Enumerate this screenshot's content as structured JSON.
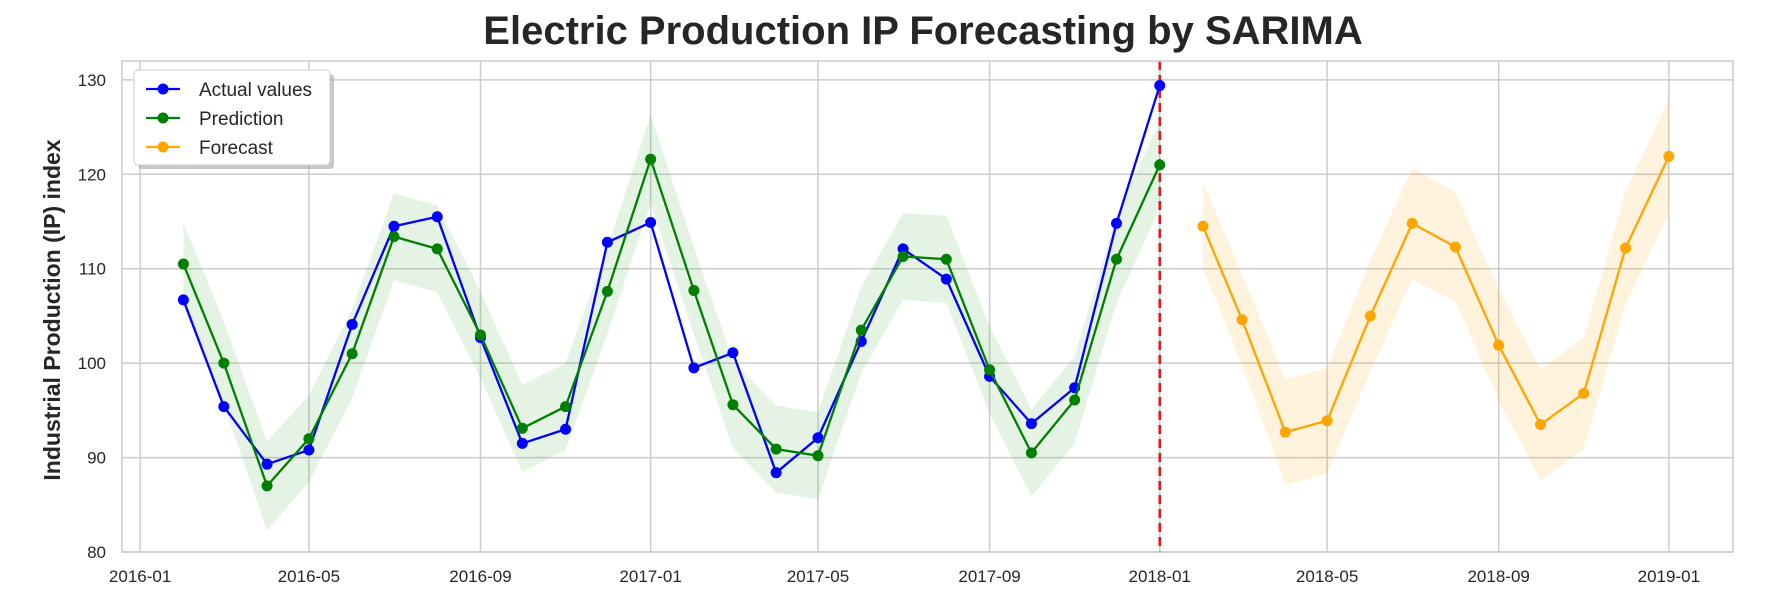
{
  "chart_data": {
    "type": "line",
    "title": "Electric Production IP Forecasting by SARIMA",
    "xlabel": "",
    "ylabel": "Industrial Production (IP) index",
    "xlim": [
      "2015-12-19",
      "2019-02-16"
    ],
    "ylim": [
      80,
      132
    ],
    "x_ticks": [
      "2016-01",
      "2016-05",
      "2016-09",
      "2017-01",
      "2017-05",
      "2017-09",
      "2018-01",
      "2018-05",
      "2018-09",
      "2019-01"
    ],
    "y_ticks": [
      80,
      90,
      100,
      110,
      120,
      130
    ],
    "grid": true,
    "legend_position": "top-left",
    "forecast_start_line": {
      "x": "2018-01-01",
      "color": "#e8121b",
      "style": "dashed"
    },
    "series": [
      {
        "name": "Actual values",
        "color": "#0000ff",
        "x": [
          "2016-02-01",
          "2016-03-01",
          "2016-04-01",
          "2016-05-01",
          "2016-06-01",
          "2016-07-01",
          "2016-08-01",
          "2016-09-01",
          "2016-10-01",
          "2016-11-01",
          "2016-12-01",
          "2017-01-01",
          "2017-02-01",
          "2017-03-01",
          "2017-04-01",
          "2017-05-01",
          "2017-06-01",
          "2017-07-01",
          "2017-08-01",
          "2017-09-01",
          "2017-10-01",
          "2017-11-01",
          "2017-12-01",
          "2018-01-01"
        ],
        "values": [
          106.7,
          95.4,
          89.3,
          90.8,
          104.1,
          114.5,
          115.5,
          102.7,
          91.5,
          93.0,
          112.8,
          114.9,
          99.5,
          101.1,
          88.4,
          92.1,
          102.3,
          112.1,
          108.9,
          98.6,
          93.6,
          97.4,
          114.8,
          129.4
        ]
      },
      {
        "name": "Prediction",
        "color": "#008000",
        "x": [
          "2016-02-01",
          "2016-03-01",
          "2016-04-01",
          "2016-05-01",
          "2016-06-01",
          "2016-07-01",
          "2016-08-01",
          "2016-09-01",
          "2016-10-01",
          "2016-11-01",
          "2016-12-01",
          "2017-01-01",
          "2017-02-01",
          "2017-03-01",
          "2017-04-01",
          "2017-05-01",
          "2017-06-01",
          "2017-07-01",
          "2017-08-01",
          "2017-09-01",
          "2017-10-01",
          "2017-11-01",
          "2017-12-01",
          "2018-01-01"
        ],
        "values": [
          110.5,
          100.0,
          87.0,
          92.0,
          101.0,
          113.4,
          112.1,
          103.0,
          93.1,
          95.4,
          107.6,
          121.6,
          107.7,
          95.6,
          90.9,
          90.2,
          103.5,
          111.3,
          111.0,
          99.3,
          90.5,
          96.1,
          111.0,
          121.0
        ],
        "ci_lower": [
          106.1,
          95.6,
          82.3,
          87.4,
          96.3,
          108.8,
          107.5,
          98.4,
          88.5,
          90.8,
          103.1,
          116.9,
          103.1,
          91.0,
          86.3,
          85.6,
          98.9,
          106.7,
          106.4,
          94.7,
          85.9,
          91.5,
          106.4,
          116.4
        ],
        "ci_upper": [
          114.9,
          104.4,
          91.7,
          96.6,
          105.7,
          118.0,
          116.7,
          107.6,
          97.7,
          100.0,
          112.2,
          126.3,
          112.3,
          100.2,
          95.5,
          94.8,
          108.1,
          115.9,
          115.6,
          103.9,
          95.1,
          100.7,
          115.6,
          125.6
        ],
        "band_color": "#2ca02c"
      },
      {
        "name": "Forecast",
        "color": "#ffa500",
        "x": [
          "2018-02-01",
          "2018-03-01",
          "2018-04-01",
          "2018-05-01",
          "2018-06-01",
          "2018-07-01",
          "2018-08-01",
          "2018-09-01",
          "2018-10-01",
          "2018-11-01",
          "2018-12-01",
          "2019-01-01"
        ],
        "values": [
          114.5,
          104.6,
          92.7,
          93.9,
          105.0,
          114.8,
          112.3,
          101.9,
          93.5,
          96.8,
          112.2,
          121.9
        ],
        "ci_lower": [
          110.0,
          99.8,
          87.1,
          88.3,
          99.1,
          108.9,
          106.5,
          96.0,
          87.6,
          90.9,
          106.2,
          115.8
        ],
        "ci_upper": [
          119.2,
          109.4,
          98.3,
          99.5,
          110.9,
          120.7,
          118.1,
          107.8,
          99.4,
          102.7,
          118.2,
          128.0
        ],
        "band_color": "#ffa500"
      }
    ]
  }
}
